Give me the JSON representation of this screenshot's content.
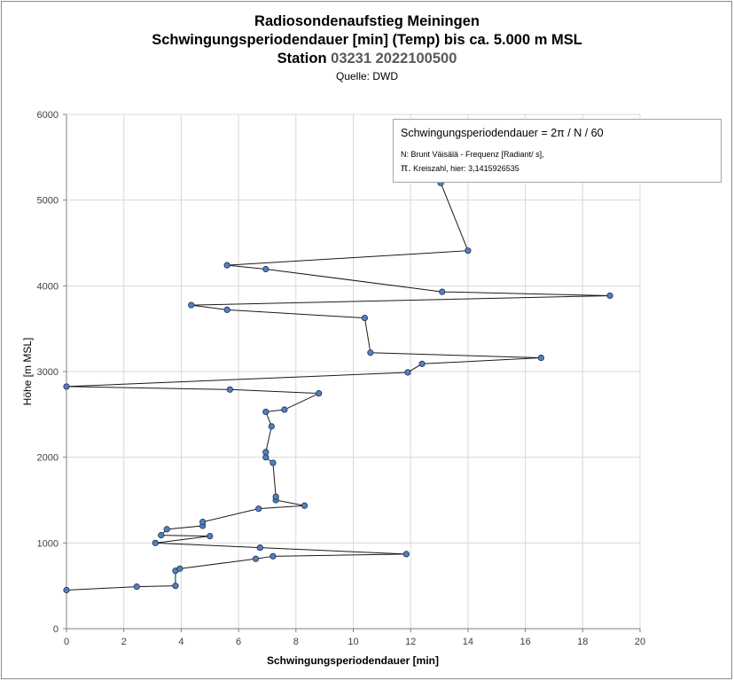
{
  "chart_data": {
    "type": "scatter",
    "title": "Radiosondenaufstieg Meiningen",
    "subtitle": "Schwingungsperiodendauer [min] (Temp) bis ca. 5.000 m MSL",
    "station_label": "Station",
    "station_code": "03231 2022100500",
    "source": "Quelle: DWD",
    "xlabel": "Schwingungsperiodendauer [min]",
    "ylabel": "Höhe [m MSL]",
    "xlim": [
      0,
      20
    ],
    "ylim": [
      0,
      6000
    ],
    "x_ticks": [
      0,
      2,
      4,
      6,
      8,
      10,
      12,
      14,
      16,
      18,
      20
    ],
    "y_ticks": [
      0,
      1000,
      2000,
      3000,
      4000,
      5000,
      6000
    ],
    "grid": true,
    "legend": "none",
    "series": [
      {
        "name": "Schwingungsperiodendauer",
        "marker_color": "#4f81bd",
        "line_color": "#1a1a1a",
        "points": [
          {
            "x": 0.0,
            "y": 450
          },
          {
            "x": 2.45,
            "y": 490
          },
          {
            "x": 3.8,
            "y": 500
          },
          {
            "x": 3.8,
            "y": 675
          },
          {
            "x": 3.95,
            "y": 700
          },
          {
            "x": 6.6,
            "y": 815
          },
          {
            "x": 7.2,
            "y": 845
          },
          {
            "x": 11.85,
            "y": 870
          },
          {
            "x": 6.75,
            "y": 945
          },
          {
            "x": 3.1,
            "y": 1000
          },
          {
            "x": 5.0,
            "y": 1080
          },
          {
            "x": 3.3,
            "y": 1090
          },
          {
            "x": 3.5,
            "y": 1160
          },
          {
            "x": 4.75,
            "y": 1200
          },
          {
            "x": 4.75,
            "y": 1245
          },
          {
            "x": 6.7,
            "y": 1400
          },
          {
            "x": 8.3,
            "y": 1435
          },
          {
            "x": 7.3,
            "y": 1500
          },
          {
            "x": 7.3,
            "y": 1540
          },
          {
            "x": 7.2,
            "y": 1935
          },
          {
            "x": 6.95,
            "y": 2000
          },
          {
            "x": 6.95,
            "y": 2060
          },
          {
            "x": 7.15,
            "y": 2360
          },
          {
            "x": 6.95,
            "y": 2530
          },
          {
            "x": 7.6,
            "y": 2555
          },
          {
            "x": 8.8,
            "y": 2745
          },
          {
            "x": 5.7,
            "y": 2790
          },
          {
            "x": 0.0,
            "y": 2825
          },
          {
            "x": 11.9,
            "y": 2990
          },
          {
            "x": 12.4,
            "y": 3090
          },
          {
            "x": 16.55,
            "y": 3160
          },
          {
            "x": 10.6,
            "y": 3220
          },
          {
            "x": 10.4,
            "y": 3625
          },
          {
            "x": 5.6,
            "y": 3720
          },
          {
            "x": 4.35,
            "y": 3775
          },
          {
            "x": 18.95,
            "y": 3885
          },
          {
            "x": 13.1,
            "y": 3930
          },
          {
            "x": 6.95,
            "y": 4195
          },
          {
            "x": 5.6,
            "y": 4240
          },
          {
            "x": 14.0,
            "y": 4410
          },
          {
            "x": 13.05,
            "y": 5200
          }
        ]
      }
    ],
    "annotation": {
      "formula": "Schwingungsperiodendauer = 2π / N / 60",
      "note1": "N: Brunt Väisälä - Frequenz [Radiant/ s],",
      "note2_symbol": "π.",
      "note2": " Kreiszahl, hier: 3,1415926535"
    }
  }
}
